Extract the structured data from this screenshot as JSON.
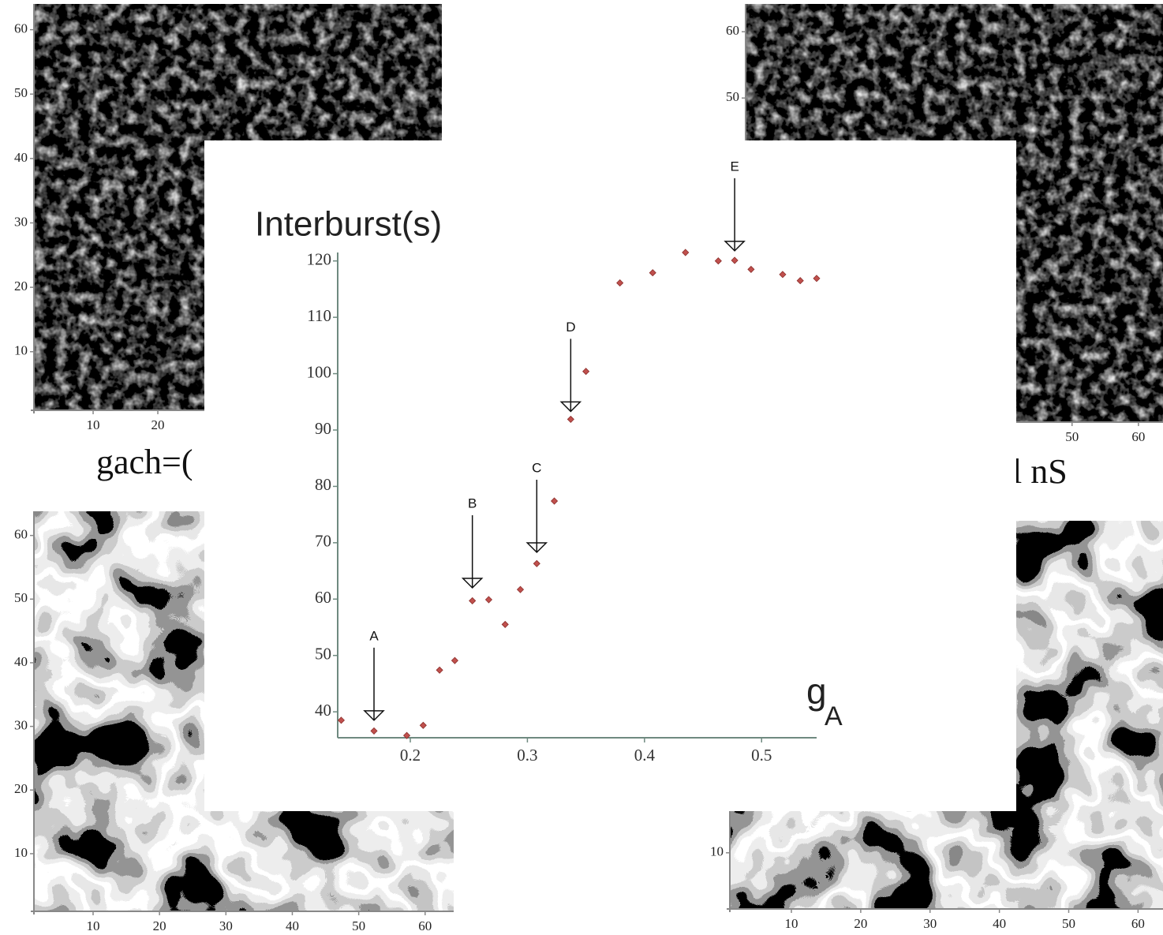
{
  "chart_data": [
    {
      "type": "heatmap",
      "caption": "gach=(",
      "xlim": [
        0.85,
        63.9
      ],
      "ylim": [
        0.9,
        64
      ],
      "xticks": [
        10,
        20
      ],
      "yticks": [
        10,
        20,
        30,
        40,
        50,
        60
      ]
    },
    {
      "type": "heatmap",
      "caption": "l nS",
      "xlim": [
        0.83,
        63.7
      ],
      "ylim": [
        1.07,
        64.2
      ],
      "xticks": [
        50,
        60
      ],
      "yticks": [
        50,
        60
      ]
    },
    {
      "type": "heatmap",
      "xlim": [
        1.09,
        64.3
      ],
      "ylim": [
        0.94,
        63.8
      ],
      "xticks": [
        10,
        20,
        30,
        40,
        50,
        60
      ],
      "yticks": [
        10,
        20,
        30,
        40,
        50,
        60
      ]
    },
    {
      "type": "heatmap",
      "xlim": [
        1.12,
        63.6
      ],
      "ylim": [
        1.1,
        62.6
      ],
      "xticks": [
        10,
        20,
        30,
        40,
        50,
        60
      ],
      "yticks": [
        10
      ]
    },
    {
      "type": "scatter",
      "ylabel": "Interburst(s)",
      "xlabel": "g",
      "xlabel_sub": "A",
      "xlim": [
        0.138,
        0.547
      ],
      "ylim": [
        35.4,
        121.5
      ],
      "xticks": [
        0.2,
        0.3,
        0.4,
        0.5
      ],
      "yticks": [
        40,
        50,
        60,
        70,
        80,
        90,
        100,
        110,
        120
      ],
      "series": [
        {
          "color": "#c0504d",
          "x": [
            0.141,
            0.169,
            0.197,
            0.211,
            0.225,
            0.238,
            0.253,
            0.267,
            0.281,
            0.294,
            0.308,
            0.323,
            0.337,
            0.35,
            0.379,
            0.407,
            0.435,
            0.463,
            0.477,
            0.491,
            0.518,
            0.533,
            0.547
          ],
          "values": [
            38.5,
            36.6,
            35.8,
            37.6,
            47.4,
            49.1,
            59.7,
            59.9,
            55.5,
            61.7,
            66.3,
            77.4,
            91.9,
            100.4,
            116.1,
            117.9,
            121.5,
            120.0,
            120.1,
            118.5,
            117.6,
            116.5,
            116.9
          ]
        }
      ],
      "annotations": [
        {
          "text": "A",
          "x": 0.169,
          "y": 38.5
        },
        {
          "text": "B",
          "x": 0.253,
          "y": 62
        },
        {
          "text": "C",
          "x": 0.308,
          "y": 68.3
        },
        {
          "text": "D",
          "x": 0.337,
          "y": 93.3
        },
        {
          "text": "E",
          "x": 0.477,
          "y": 121.8
        }
      ]
    }
  ]
}
